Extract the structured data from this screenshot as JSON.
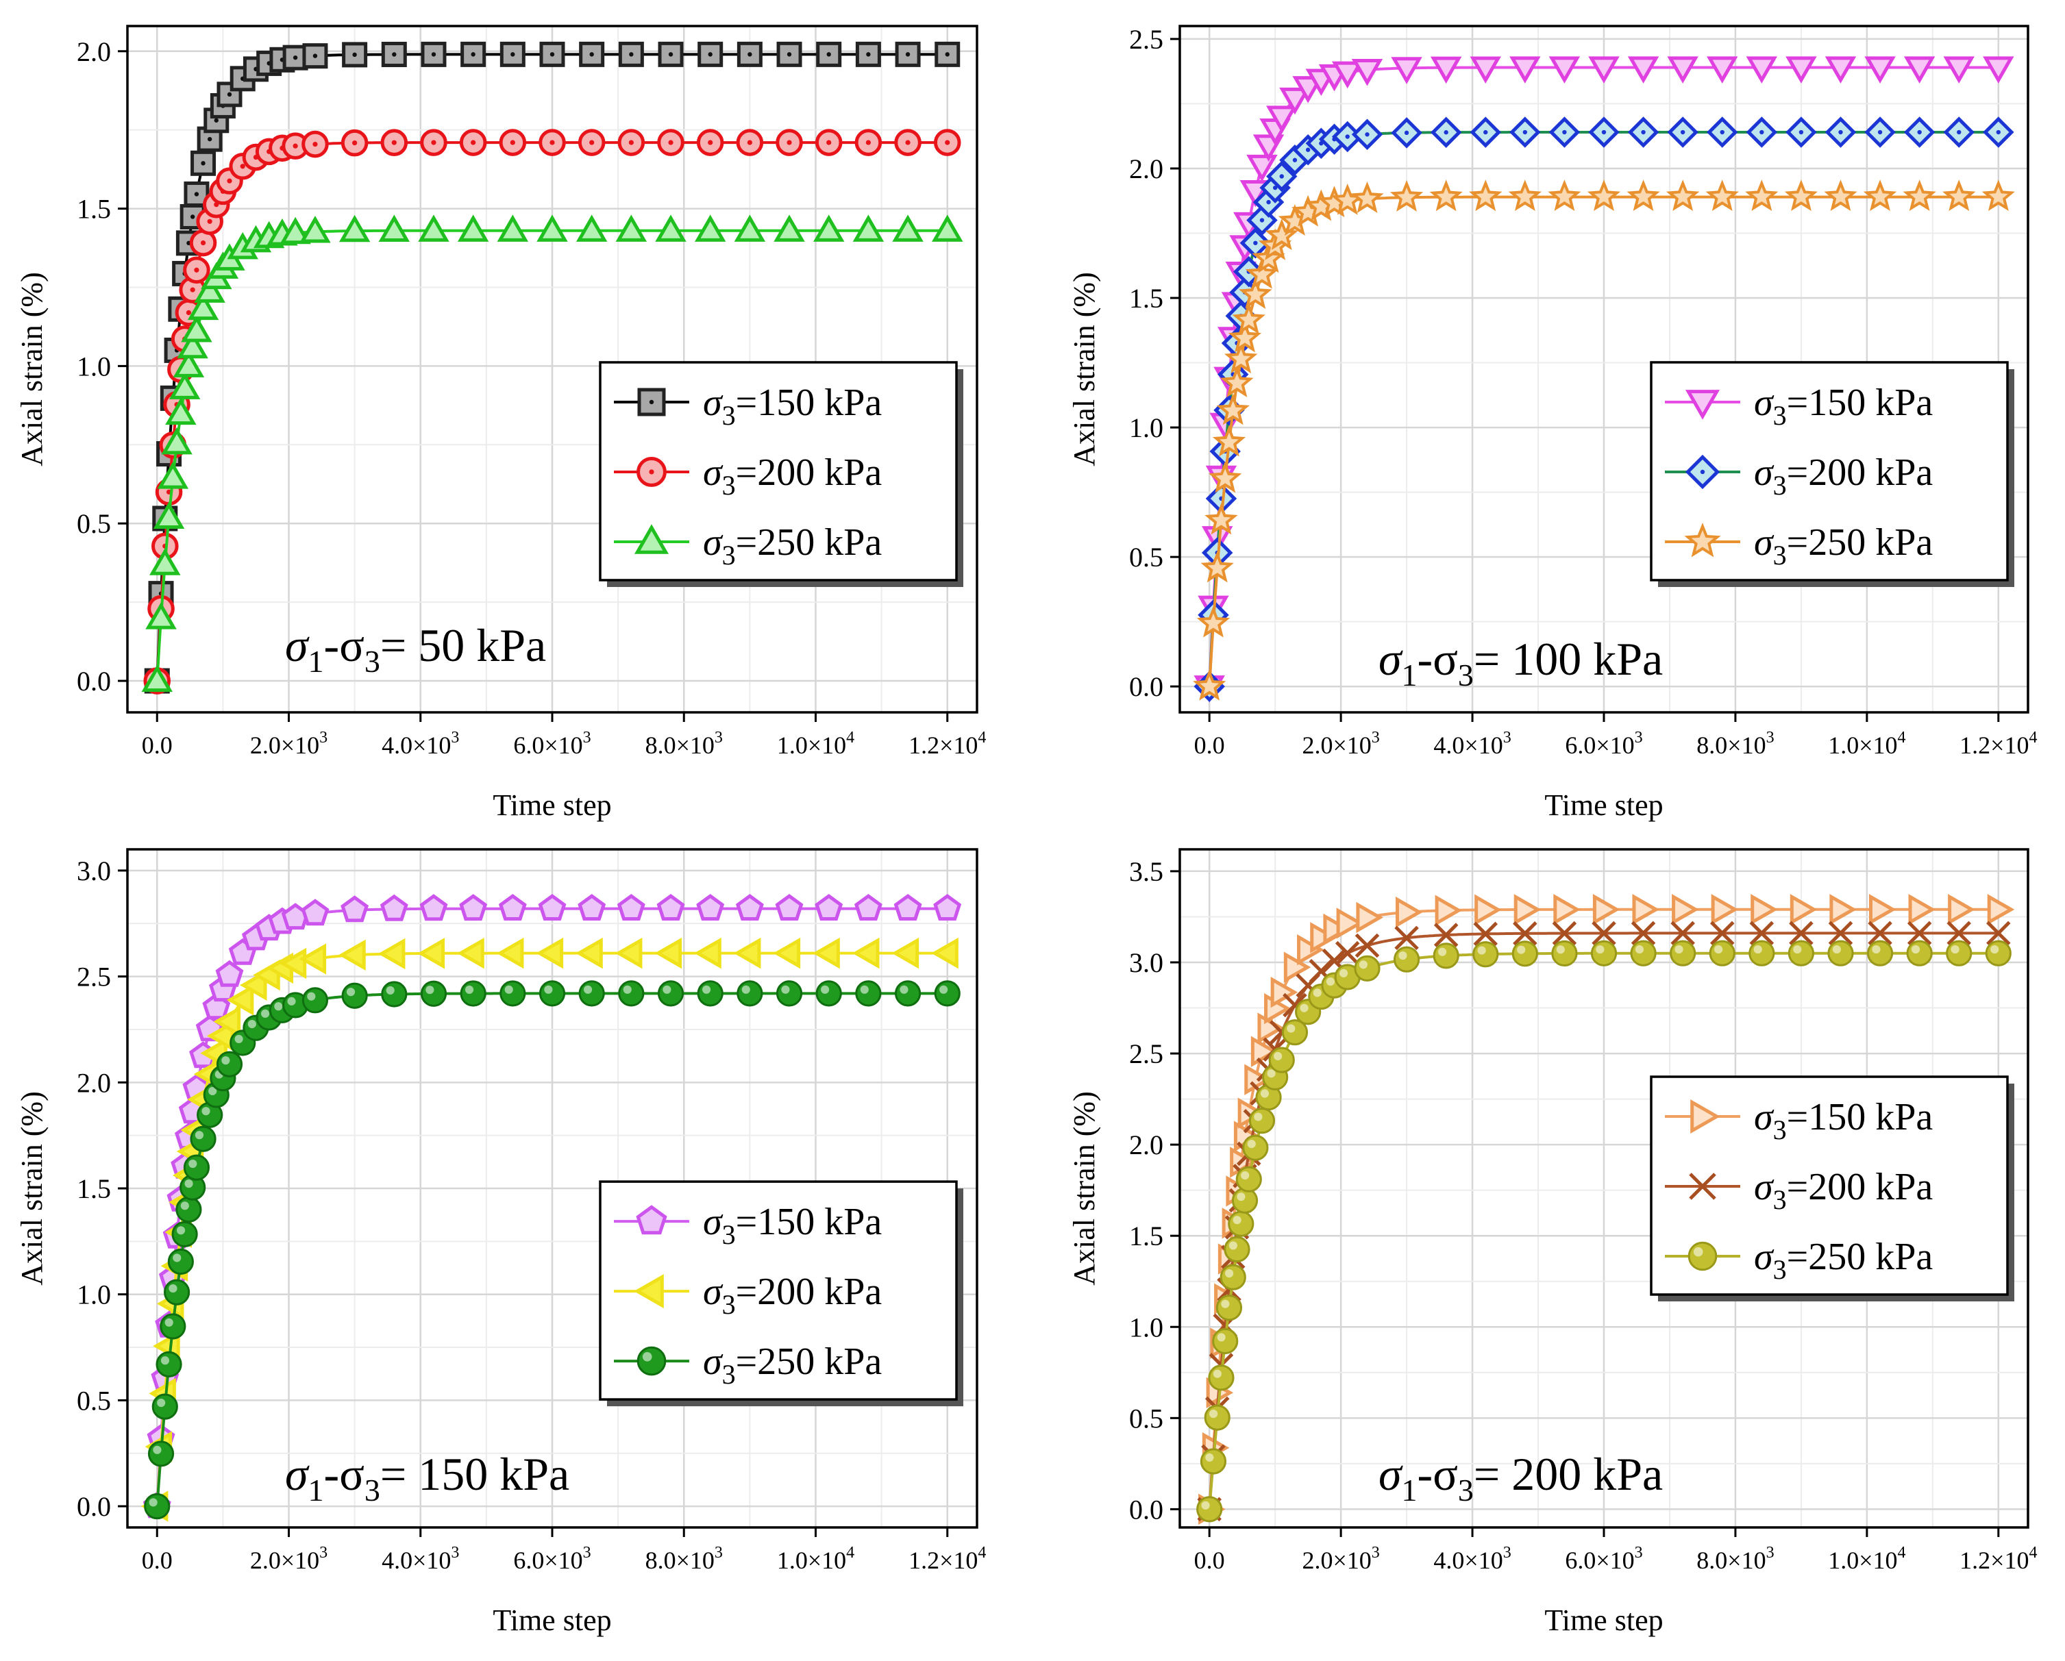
{
  "chart_data": [
    {
      "type": "line",
      "annotation": {
        "prefix": "σ",
        "sub1": "1",
        "dash": "-σ",
        "sub2": "3",
        "eq": "= 50 kPa"
      },
      "xlabel": "Time step",
      "ylabel": "Axial strain (%)",
      "xlim": [
        -450,
        12450
      ],
      "ylim": [
        -0.1,
        2.08
      ],
      "xticks": [
        {
          "v": 0,
          "m": "0.0",
          "e": ""
        },
        {
          "v": 2000,
          "m": "2.0×10",
          "e": "3"
        },
        {
          "v": 4000,
          "m": "4.0×10",
          "e": "3"
        },
        {
          "v": 6000,
          "m": "6.0×10",
          "e": "3"
        },
        {
          "v": 8000,
          "m": "8.0×10",
          "e": "3"
        },
        {
          "v": 10000,
          "m": "1.0×10",
          "e": "4"
        },
        {
          "v": 12000,
          "m": "1.2×10",
          "e": "4"
        }
      ],
      "yticks": [
        {
          "v": 0,
          "l": "0.0"
        },
        {
          "v": 0.5,
          "l": "0.5"
        },
        {
          "v": 1.0,
          "l": "1.0"
        },
        {
          "v": 1.5,
          "l": "1.5"
        },
        {
          "v": 2.0,
          "l": "2.0"
        }
      ],
      "legend": {
        "position": "center-right"
      },
      "series": [
        {
          "name_pre": "σ",
          "name_sub": "3",
          "name_post": "=150 kPa",
          "marker": "square",
          "line": "#000000",
          "stroke": "#222222",
          "fill": "#a8a8a8",
          "dot": "#111111",
          "ymax": 1.99,
          "k": 2.5
        },
        {
          "name_pre": "σ",
          "name_sub": "3",
          "name_post": "=200 kPa",
          "marker": "circle-dot",
          "line": "#e8141a",
          "stroke": "#e8141a",
          "fill": "#f7b3b4",
          "dot": "#e8141a",
          "ymax": 1.71,
          "k": 2.4
        },
        {
          "name_pre": "σ",
          "name_sub": "3",
          "name_post": "=250 kPa",
          "marker": "triangle-up",
          "line": "#22cc22",
          "stroke": "#1fbf1f",
          "fill": "#b4f2b4",
          "dot": "",
          "ymax": 1.43,
          "k": 2.5
        }
      ]
    },
    {
      "type": "line",
      "annotation": {
        "prefix": "σ",
        "sub1": "1",
        "dash": "-σ",
        "sub2": "3",
        "eq": "= 100 kPa"
      },
      "xlabel": "Time step",
      "ylabel": "Axial strain (%)",
      "xlim": [
        -450,
        12450
      ],
      "ylim": [
        -0.1,
        2.55
      ],
      "xticks": [
        {
          "v": 0,
          "m": "0.0",
          "e": ""
        },
        {
          "v": 2000,
          "m": "2.0×10",
          "e": "3"
        },
        {
          "v": 4000,
          "m": "4.0×10",
          "e": "3"
        },
        {
          "v": 6000,
          "m": "6.0×10",
          "e": "3"
        },
        {
          "v": 8000,
          "m": "8.0×10",
          "e": "3"
        },
        {
          "v": 10000,
          "m": "1.0×10",
          "e": "4"
        },
        {
          "v": 12000,
          "m": "1.2×10",
          "e": "4"
        }
      ],
      "yticks": [
        {
          "v": 0,
          "l": "0.0"
        },
        {
          "v": 0.5,
          "l": "0.5"
        },
        {
          "v": 1.0,
          "l": "1.0"
        },
        {
          "v": 1.5,
          "l": "1.5"
        },
        {
          "v": 2.0,
          "l": "2.0"
        },
        {
          "v": 2.5,
          "l": "2.5"
        }
      ],
      "legend": {
        "position": "center-right"
      },
      "series": [
        {
          "name_pre": "σ",
          "name_sub": "3",
          "name_post": "=150 kPa",
          "marker": "triangle-down",
          "line": "#e64ce6",
          "stroke": "#e040e0",
          "fill": "#f7c6f7",
          "dot": "",
          "ymax": 2.39,
          "k": 2.3
        },
        {
          "name_pre": "σ",
          "name_sub": "3",
          "name_post": "=200 kPa",
          "marker": "diamond",
          "line": "#1f8f4f",
          "stroke": "#1c36d6",
          "fill": "#bfe6ee",
          "dot": "#1c36d6",
          "ymax": 2.14,
          "k": 2.3
        },
        {
          "name_pre": "σ",
          "name_sub": "3",
          "name_post": "=250 kPa",
          "marker": "star",
          "line": "#e8912e",
          "stroke": "#e8912e",
          "fill": "#fad9b0",
          "dot": "",
          "ymax": 1.89,
          "k": 2.3
        }
      ]
    },
    {
      "type": "line",
      "annotation": {
        "prefix": "σ",
        "sub1": "1",
        "dash": "-σ",
        "sub2": "3",
        "eq": "= 150 kPa"
      },
      "xlabel": "Time step",
      "ylabel": "Axial strain (%)",
      "xlim": [
        -450,
        12450
      ],
      "ylim": [
        -0.1,
        3.1
      ],
      "xticks": [
        {
          "v": 0,
          "m": "0.0",
          "e": ""
        },
        {
          "v": 2000,
          "m": "2.0×10",
          "e": "3"
        },
        {
          "v": 4000,
          "m": "4.0×10",
          "e": "3"
        },
        {
          "v": 6000,
          "m": "6.0×10",
          "e": "3"
        },
        {
          "v": 8000,
          "m": "8.0×10",
          "e": "3"
        },
        {
          "v": 10000,
          "m": "1.0×10",
          "e": "4"
        },
        {
          "v": 12000,
          "m": "1.2×10",
          "e": "4"
        }
      ],
      "yticks": [
        {
          "v": 0,
          "l": "0.0"
        },
        {
          "v": 0.5,
          "l": "0.5"
        },
        {
          "v": 1.0,
          "l": "1.0"
        },
        {
          "v": 1.5,
          "l": "1.5"
        },
        {
          "v": 2.0,
          "l": "2.0"
        },
        {
          "v": 2.5,
          "l": "2.5"
        },
        {
          "v": 3.0,
          "l": "3.0"
        }
      ],
      "legend": {
        "position": "center-right"
      },
      "series": [
        {
          "name_pre": "σ",
          "name_sub": "3",
          "name_post": "=150 kPa",
          "marker": "pentagon",
          "line": "#d15cf0",
          "stroke": "#cc55ee",
          "fill": "#ecc4fa",
          "dot": "",
          "ymax": 2.82,
          "k": 2.0
        },
        {
          "name_pre": "σ",
          "name_sub": "3",
          "name_post": "=200 kPa",
          "marker": "triangle-left",
          "line": "#f2e21c",
          "stroke": "#efe21a",
          "fill": "#f7ee3a",
          "dot": "",
          "ymax": 2.61,
          "k": 1.9
        },
        {
          "name_pre": "σ",
          "name_sub": "3",
          "name_post": "=250 kPa",
          "marker": "sphere",
          "line": "#1a8c1a",
          "stroke": "#0f6e0f",
          "fill": "#1f9a1f",
          "dot": "",
          "ymax": 2.42,
          "k": 1.8
        }
      ]
    },
    {
      "type": "line",
      "annotation": {
        "prefix": "σ",
        "sub1": "1",
        "dash": "-σ",
        "sub2": "3",
        "eq": "= 200 kPa"
      },
      "xlabel": "Time step",
      "ylabel": "Axial strain (%)",
      "xlim": [
        -450,
        12450
      ],
      "ylim": [
        -0.1,
        3.62
      ],
      "xticks": [
        {
          "v": 0,
          "m": "0.0",
          "e": ""
        },
        {
          "v": 2000,
          "m": "2.0×10",
          "e": "3"
        },
        {
          "v": 4000,
          "m": "4.0×10",
          "e": "3"
        },
        {
          "v": 6000,
          "m": "6.0×10",
          "e": "3"
        },
        {
          "v": 8000,
          "m": "8.0×10",
          "e": "3"
        },
        {
          "v": 10000,
          "m": "1.0×10",
          "e": "4"
        },
        {
          "v": 12000,
          "m": "1.2×10",
          "e": "4"
        }
      ],
      "yticks": [
        {
          "v": 0,
          "l": "0.0"
        },
        {
          "v": 0.5,
          "l": "0.5"
        },
        {
          "v": 1.0,
          "l": "1.0"
        },
        {
          "v": 1.5,
          "l": "1.5"
        },
        {
          "v": 2.0,
          "l": "2.0"
        },
        {
          "v": 2.5,
          "l": "2.5"
        },
        {
          "v": 3.0,
          "l": "3.0"
        },
        {
          "v": 3.5,
          "l": "3.5"
        }
      ],
      "legend": {
        "position": "lower-right"
      },
      "series": [
        {
          "name_pre": "σ",
          "name_sub": "3",
          "name_post": "=150 kPa",
          "marker": "triangle-right",
          "line": "#f0a060",
          "stroke": "#ec9a55",
          "fill": "#fde2c9",
          "dot": "",
          "ymax": 3.29,
          "k": 1.8
        },
        {
          "name_pre": "σ",
          "name_sub": "3",
          "name_post": "=200 kPa",
          "marker": "x",
          "line": "#b0562a",
          "stroke": "#a84f22",
          "fill": "none",
          "dot": "",
          "ymax": 3.16,
          "k": 1.6
        },
        {
          "name_pre": "σ",
          "name_sub": "3",
          "name_post": "=250 kPa",
          "marker": "sphere",
          "line": "#b5b22a",
          "stroke": "#9a9818",
          "fill": "#c2bf30",
          "dot": "",
          "ymax": 3.05,
          "k": 1.5
        }
      ]
    }
  ]
}
